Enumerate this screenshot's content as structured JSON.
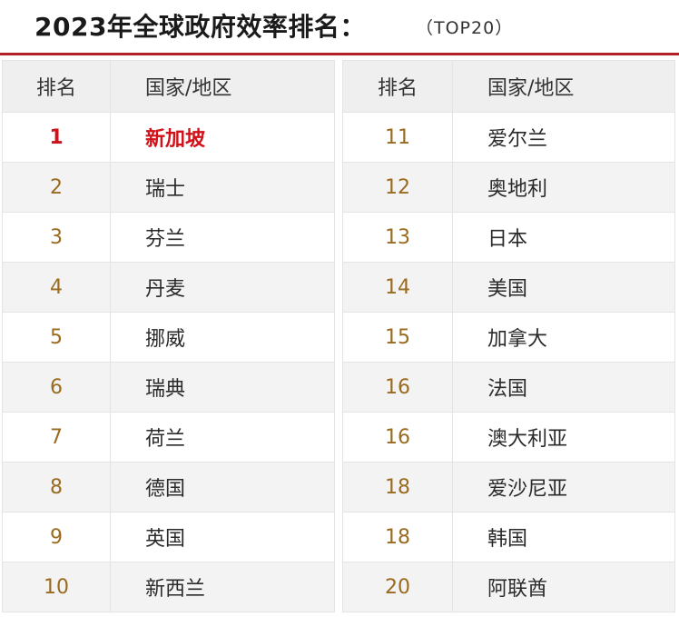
{
  "title": "2023年全球政府效率排名：",
  "subtitle": "（TOP20）",
  "headers": {
    "rank": "排名",
    "country": "国家/地区"
  },
  "left_rows": [
    {
      "rank": "1",
      "country": "新加坡"
    },
    {
      "rank": "2",
      "country": "瑞士"
    },
    {
      "rank": "3",
      "country": "芬兰"
    },
    {
      "rank": "4",
      "country": "丹麦"
    },
    {
      "rank": "5",
      "country": "挪威"
    },
    {
      "rank": "6",
      "country": "瑞典"
    },
    {
      "rank": "7",
      "country": "荷兰"
    },
    {
      "rank": "8",
      "country": "德国"
    },
    {
      "rank": "9",
      "country": "英国"
    },
    {
      "rank": "10",
      "country": "新西兰"
    }
  ],
  "right_rows": [
    {
      "rank": "11",
      "country": "爱尔兰"
    },
    {
      "rank": "12",
      "country": "奥地利"
    },
    {
      "rank": "13",
      "country": "日本"
    },
    {
      "rank": "14",
      "country": "美国"
    },
    {
      "rank": "15",
      "country": "加拿大"
    },
    {
      "rank": "16",
      "country": "法国"
    },
    {
      "rank": "16",
      "country": "澳大利亚"
    },
    {
      "rank": "18",
      "country": "爱沙尼亚"
    },
    {
      "rank": "18",
      "country": "韩国"
    },
    {
      "rank": "20",
      "country": "阿联酋"
    }
  ],
  "colors": {
    "accent": "#b3202a",
    "highlight": "#d1101a",
    "rank_gold": "#9a6a1e"
  }
}
